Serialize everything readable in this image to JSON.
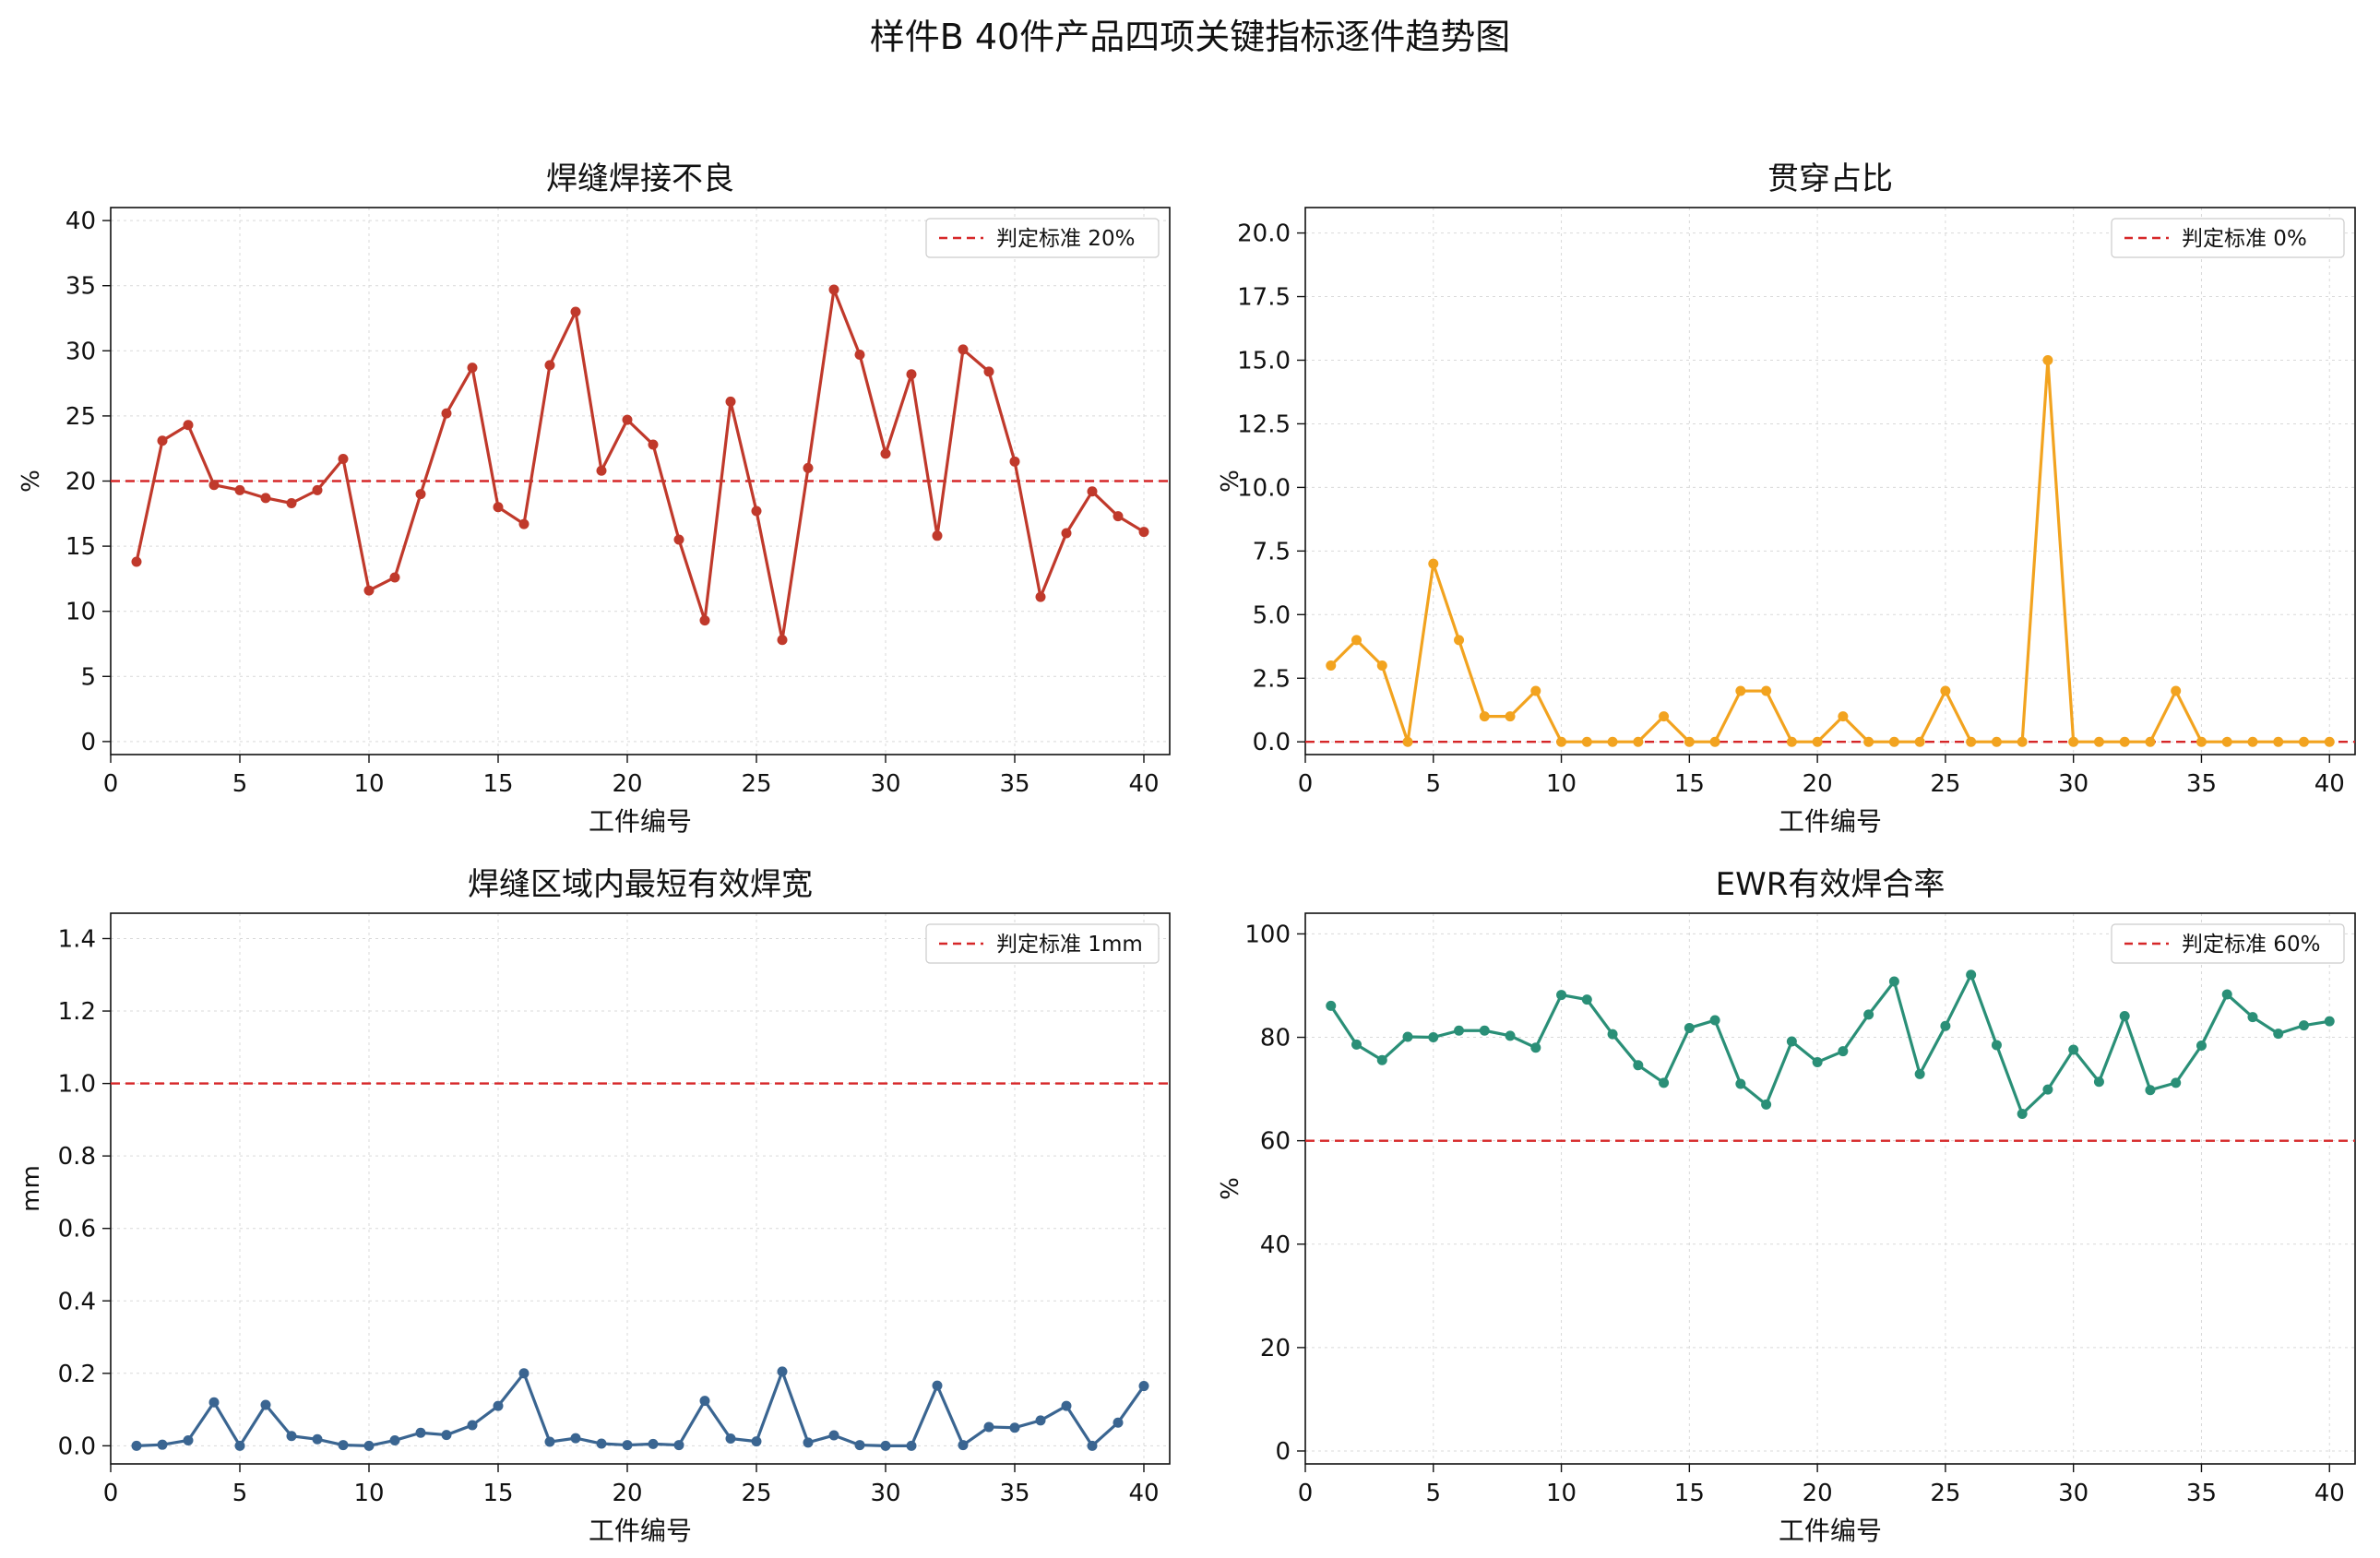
{
  "figure": {
    "title": "样件B 40件产品四项关键指标逐件趋势图"
  },
  "colors": {
    "threshold": "#d62728",
    "grid": "#d9d9d9"
  },
  "chart_data": [
    {
      "type": "line",
      "title": "焊缝焊接不良",
      "xlabel": "工件编号",
      "ylabel": "%",
      "color": "#c0392b",
      "xlim": [
        0,
        41
      ],
      "ylim": [
        -1,
        41
      ],
      "xticks": [
        0,
        5,
        10,
        15,
        20,
        25,
        30,
        35,
        40
      ],
      "yticks": [
        0,
        5,
        10,
        15,
        20,
        25,
        30,
        35,
        40
      ],
      "ytick_decimals": 0,
      "threshold": {
        "value": 20,
        "label": "判定标准 20%"
      },
      "legend_position": "top-right",
      "grid": true,
      "x": [
        1,
        2,
        3,
        4,
        5,
        6,
        7,
        8,
        9,
        10,
        11,
        12,
        13,
        14,
        15,
        16,
        17,
        18,
        19,
        20,
        21,
        22,
        23,
        24,
        25,
        26,
        27,
        28,
        29,
        30,
        31,
        32,
        33,
        34,
        35,
        36,
        37,
        38,
        39,
        40
      ],
      "values": [
        13.8,
        23.1,
        24.3,
        19.7,
        19.3,
        18.7,
        18.3,
        19.3,
        21.7,
        11.6,
        12.6,
        19.0,
        25.2,
        28.7,
        18.0,
        16.7,
        28.9,
        33.0,
        20.8,
        24.7,
        22.8,
        15.5,
        9.3,
        26.1,
        17.7,
        7.8,
        21.0,
        34.7,
        29.7,
        22.1,
        28.2,
        15.8,
        30.1,
        28.4,
        21.5,
        11.1,
        16.0,
        19.2,
        17.3,
        16.1
      ]
    },
    {
      "type": "line",
      "title": "贯穿占比",
      "xlabel": "工件编号",
      "ylabel": "%",
      "color": "#f2a31f",
      "xlim": [
        0,
        41
      ],
      "ylim": [
        -0.5,
        21
      ],
      "xticks": [
        0,
        5,
        10,
        15,
        20,
        25,
        30,
        35,
        40
      ],
      "yticks": [
        0,
        2.5,
        5,
        7.5,
        10,
        12.5,
        15,
        17.5,
        20
      ],
      "ytick_decimals": 1,
      "threshold": {
        "value": 0,
        "label": "判定标准 0%"
      },
      "legend_position": "top-right",
      "grid": true,
      "x": [
        1,
        2,
        3,
        4,
        5,
        6,
        7,
        8,
        9,
        10,
        11,
        12,
        13,
        14,
        15,
        16,
        17,
        18,
        19,
        20,
        21,
        22,
        23,
        24,
        25,
        26,
        27,
        28,
        29,
        30,
        31,
        32,
        33,
        34,
        35,
        36,
        37,
        38,
        39,
        40
      ],
      "values": [
        3,
        4,
        3,
        0,
        7,
        4,
        1,
        1,
        2,
        0,
        0,
        0,
        0,
        1,
        0,
        0,
        2,
        2,
        0,
        0,
        1,
        0,
        0,
        0,
        2,
        0,
        0,
        0,
        15,
        0,
        0,
        0,
        0,
        2,
        0,
        0,
        0,
        0,
        0,
        0
      ]
    },
    {
      "type": "line",
      "title": "焊缝区域内最短有效焊宽",
      "xlabel": "工件编号",
      "ylabel": "mm",
      "color": "#3a6591",
      "xlim": [
        0,
        41
      ],
      "ylim": [
        -0.05,
        1.47
      ],
      "xticks": [
        0,
        5,
        10,
        15,
        20,
        25,
        30,
        35,
        40
      ],
      "yticks": [
        0,
        0.2,
        0.4,
        0.6,
        0.8,
        1.0,
        1.2,
        1.4
      ],
      "ytick_decimals": 1,
      "threshold": {
        "value": 1,
        "label": "判定标准 1mm"
      },
      "legend_position": "top-right",
      "grid": true,
      "x": [
        1,
        2,
        3,
        4,
        5,
        6,
        7,
        8,
        9,
        10,
        11,
        12,
        13,
        14,
        15,
        16,
        17,
        18,
        19,
        20,
        21,
        22,
        23,
        24,
        25,
        26,
        27,
        28,
        29,
        30,
        31,
        32,
        33,
        34,
        35,
        36,
        37,
        38,
        39,
        40
      ],
      "values": [
        0.0,
        0.003,
        0.015,
        0.12,
        0.0,
        0.113,
        0.027,
        0.018,
        0.002,
        0.0,
        0.015,
        0.036,
        0.03,
        0.057,
        0.11,
        0.2,
        0.011,
        0.021,
        0.006,
        0.002,
        0.005,
        0.002,
        0.124,
        0.02,
        0.012,
        0.205,
        0.009,
        0.029,
        0.002,
        0.0,
        0.0,
        0.166,
        0.002,
        0.052,
        0.05,
        0.07,
        0.11,
        0.0,
        0.064,
        0.165
      ]
    },
    {
      "type": "line",
      "title": "EWR有效焊合率",
      "xlabel": "工件编号",
      "ylabel": "%",
      "color": "#2a8f77",
      "xlim": [
        0,
        41
      ],
      "ylim": [
        -2.5,
        104
      ],
      "xticks": [
        0,
        5,
        10,
        15,
        20,
        25,
        30,
        35,
        40
      ],
      "yticks": [
        0,
        20,
        40,
        60,
        80,
        100
      ],
      "ytick_decimals": 0,
      "threshold": {
        "value": 60,
        "label": "判定标准 60%"
      },
      "legend_position": "top-right",
      "grid": true,
      "x": [
        1,
        2,
        3,
        4,
        5,
        6,
        7,
        8,
        9,
        10,
        11,
        12,
        13,
        14,
        15,
        16,
        17,
        18,
        19,
        20,
        21,
        22,
        23,
        24,
        25,
        26,
        27,
        28,
        29,
        30,
        31,
        32,
        33,
        34,
        35,
        36,
        37,
        38,
        39,
        40
      ],
      "values": [
        86.1,
        78.6,
        75.6,
        80.1,
        80.0,
        81.3,
        81.3,
        80.3,
        78.0,
        88.2,
        87.3,
        80.6,
        74.6,
        71.2,
        81.8,
        83.3,
        71.0,
        67.0,
        79.2,
        75.2,
        77.3,
        84.4,
        90.8,
        72.9,
        82.2,
        92.1,
        78.5,
        65.2,
        69.9,
        77.6,
        71.4,
        84.1,
        69.8,
        71.2,
        78.4,
        88.3,
        83.9,
        80.7,
        82.3,
        83.1
      ]
    }
  ]
}
